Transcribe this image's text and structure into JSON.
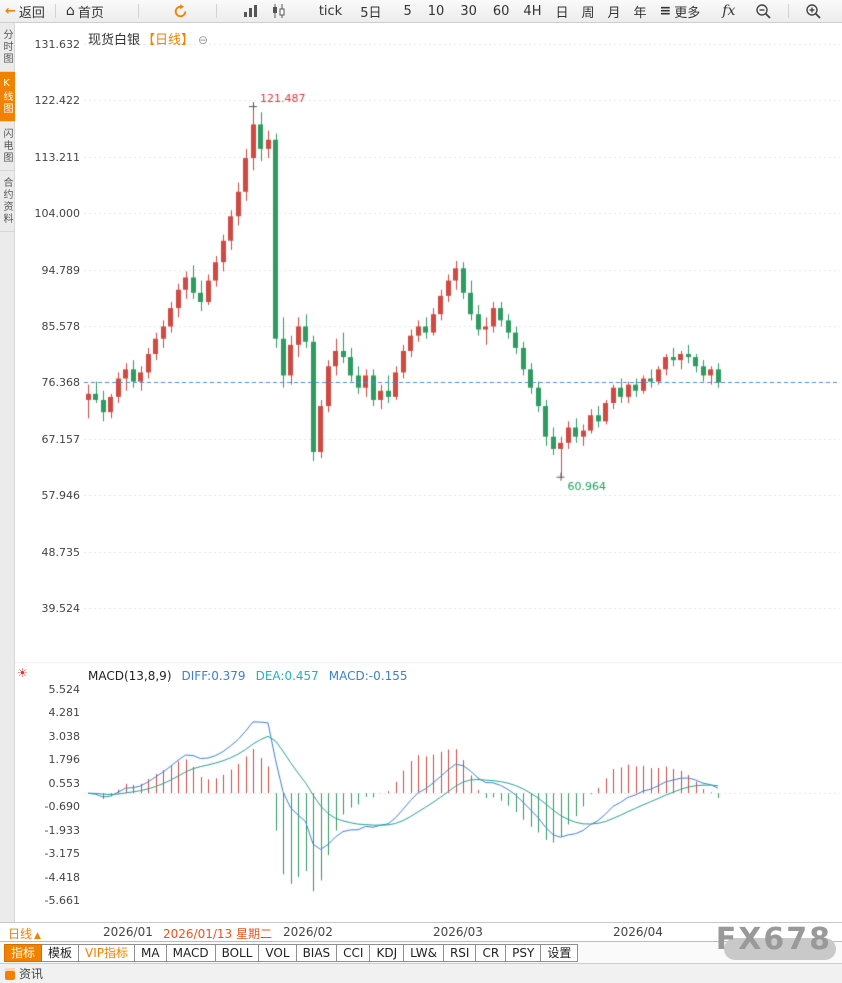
{
  "colors": {
    "accent": "#f08200",
    "candle_up": "#cf4a42",
    "candle_down": "#2e9b60",
    "price_line": "#4f8fd0",
    "macd_diff_line": "#3e7fd0",
    "macd_dea_line": "#2a9d8f",
    "hist_up": "#cf4a42",
    "hist_down": "#2e9b60",
    "date_highlight": "#e8541d",
    "annotation_high": "#e0393e",
    "annotation_low": "#1fa05a"
  },
  "toolbar": {
    "back": "返回",
    "home": "首页",
    "tick": "tick",
    "five_day": "5日",
    "intervals": [
      "5",
      "10",
      "30",
      "60",
      "4H",
      "日",
      "周",
      "月",
      "年"
    ],
    "more": "更多",
    "fx": "fx"
  },
  "sidebar": {
    "items": [
      {
        "label": "分时图",
        "active": false
      },
      {
        "label": "K线图",
        "active": true
      },
      {
        "label": "闪电图",
        "active": false
      },
      {
        "label": "合约资料",
        "active": false
      }
    ]
  },
  "chart_header": {
    "symbol": "现货白银",
    "period_tag": "【日线】"
  },
  "macd_header": {
    "title": "MACD(13,8,9)",
    "diff": "DIFF:0.379",
    "dea": "DEA:0.457",
    "macd": "MACD:-0.155"
  },
  "bottom": {
    "period_label": "日线",
    "indicator_tabs": [
      "指标",
      "模板",
      "VIP指标",
      "MA",
      "MACD",
      "BOLL",
      "VOL",
      "BIAS",
      "CCI",
      "KDJ",
      "LW&",
      "RSI",
      "CR",
      "PSY",
      "设置"
    ],
    "watermark": "FX678",
    "news_tab": "资讯"
  },
  "chart_data": {
    "type": "candlestick",
    "symbol": "现货白银",
    "interval": "日线",
    "y_axis": [
      131.632,
      122.422,
      113.211,
      104.0,
      94.789,
      85.578,
      76.368,
      67.157,
      57.946,
      48.735,
      39.524
    ],
    "price_line": 76.368,
    "annotations": {
      "high": 121.487,
      "high_text": "121.487",
      "low": 60.964,
      "low_text": "60.964"
    },
    "x_labels": [
      {
        "text": "2026/01",
        "index": 2,
        "highlight": false
      },
      {
        "text": "2026/01/13 星期二",
        "index": 10,
        "highlight": true
      },
      {
        "text": "2026/02",
        "index": 26,
        "highlight": false
      },
      {
        "text": "2026/03",
        "index": 46,
        "highlight": false
      },
      {
        "text": "2026/04",
        "index": 70,
        "highlight": false
      }
    ],
    "candles": [
      [
        73.5,
        76.0,
        70.5,
        74.5
      ],
      [
        74.5,
        76.5,
        73.0,
        73.5
      ],
      [
        73.5,
        75.0,
        70.0,
        71.5
      ],
      [
        71.5,
        74.5,
        70.5,
        74.0
      ],
      [
        74.0,
        78.0,
        73.0,
        77.0
      ],
      [
        77.0,
        79.5,
        75.0,
        78.5
      ],
      [
        78.5,
        80.0,
        75.5,
        76.5
      ],
      [
        76.5,
        79.0,
        75.0,
        78.0
      ],
      [
        78.0,
        82.0,
        77.0,
        81.0
      ],
      [
        81.0,
        84.5,
        80.0,
        83.5
      ],
      [
        83.5,
        86.5,
        82.0,
        85.5
      ],
      [
        85.5,
        89.5,
        84.5,
        88.5
      ],
      [
        88.5,
        92.5,
        87.0,
        91.5
      ],
      [
        91.5,
        94.5,
        90.0,
        93.5
      ],
      [
        93.5,
        95.5,
        90.0,
        91.0
      ],
      [
        91.0,
        93.0,
        88.0,
        89.5
      ],
      [
        89.5,
        94.0,
        89.0,
        93.0
      ],
      [
        93.0,
        97.0,
        92.0,
        96.0
      ],
      [
        96.0,
        100.5,
        94.5,
        99.5
      ],
      [
        99.5,
        104.5,
        98.0,
        103.5
      ],
      [
        103.5,
        109.0,
        102.0,
        107.5
      ],
      [
        107.5,
        114.5,
        106.0,
        113.0
      ],
      [
        113.0,
        121.487,
        111.0,
        118.5
      ],
      [
        118.5,
        120.5,
        112.5,
        114.5
      ],
      [
        114.5,
        117.5,
        113.0,
        116.0
      ],
      [
        116.0,
        117.0,
        82.0,
        83.5
      ],
      [
        83.5,
        87.0,
        75.5,
        77.5
      ],
      [
        77.5,
        84.0,
        76.0,
        82.5
      ],
      [
        82.5,
        87.0,
        80.5,
        85.5
      ],
      [
        85.5,
        87.5,
        82.0,
        83.0
      ],
      [
        83.0,
        84.0,
        63.5,
        65.0
      ],
      [
        65.0,
        73.5,
        64.0,
        72.5
      ],
      [
        72.5,
        80.0,
        71.5,
        79.0
      ],
      [
        79.0,
        83.5,
        77.5,
        81.5
      ],
      [
        81.5,
        84.5,
        79.5,
        80.5
      ],
      [
        80.5,
        82.0,
        76.5,
        77.5
      ],
      [
        77.5,
        79.0,
        74.5,
        75.5
      ],
      [
        75.5,
        78.5,
        74.0,
        77.5
      ],
      [
        77.5,
        78.5,
        72.5,
        73.5
      ],
      [
        73.5,
        76.0,
        72.0,
        75.0
      ],
      [
        75.0,
        77.5,
        73.0,
        74.0
      ],
      [
        74.0,
        79.0,
        73.5,
        78.0
      ],
      [
        78.0,
        82.5,
        77.0,
        81.5
      ],
      [
        81.5,
        85.0,
        80.5,
        84.0
      ],
      [
        84.0,
        86.5,
        83.0,
        85.5
      ],
      [
        85.5,
        87.0,
        83.5,
        84.5
      ],
      [
        84.5,
        88.5,
        84.0,
        87.5
      ],
      [
        87.5,
        91.5,
        86.5,
        90.5
      ],
      [
        90.5,
        94.0,
        89.5,
        93.0
      ],
      [
        93.0,
        96.2,
        91.5,
        95.0
      ],
      [
        95.0,
        96.0,
        90.0,
        91.0
      ],
      [
        91.0,
        93.0,
        86.5,
        87.5
      ],
      [
        87.5,
        89.0,
        84.0,
        85.0
      ],
      [
        85.0,
        87.0,
        82.5,
        85.5
      ],
      [
        85.5,
        89.5,
        84.5,
        88.5
      ],
      [
        88.5,
        89.5,
        85.5,
        86.5
      ],
      [
        86.5,
        87.5,
        83.5,
        84.5
      ],
      [
        84.5,
        85.5,
        81.0,
        82.0
      ],
      [
        82.0,
        83.0,
        77.5,
        78.5
      ],
      [
        78.5,
        79.5,
        74.5,
        75.5
      ],
      [
        75.5,
        76.5,
        71.5,
        72.5
      ],
      [
        72.5,
        73.5,
        66.0,
        67.5
      ],
      [
        67.5,
        69.0,
        64.5,
        65.5
      ],
      [
        65.5,
        67.5,
        60.964,
        66.5
      ],
      [
        66.5,
        70.0,
        65.5,
        69.0
      ],
      [
        69.0,
        70.5,
        66.5,
        67.5
      ],
      [
        67.5,
        69.5,
        66.0,
        68.5
      ],
      [
        68.5,
        72.0,
        68.0,
        71.0
      ],
      [
        71.0,
        72.5,
        69.0,
        70.0
      ],
      [
        70.0,
        73.5,
        69.5,
        73.0
      ],
      [
        73.0,
        76.0,
        72.0,
        75.5
      ],
      [
        75.5,
        77.0,
        73.0,
        74.0
      ],
      [
        74.0,
        76.5,
        73.0,
        76.0
      ],
      [
        76.0,
        77.0,
        74.0,
        75.0
      ],
      [
        75.0,
        77.5,
        74.5,
        77.0
      ],
      [
        77.0,
        78.5,
        75.5,
        76.5
      ],
      [
        76.5,
        79.0,
        76.0,
        78.5
      ],
      [
        78.5,
        81.0,
        77.5,
        80.5
      ],
      [
        80.5,
        82.0,
        79.0,
        80.0
      ],
      [
        80.0,
        81.5,
        78.5,
        81.0
      ],
      [
        81.0,
        82.5,
        79.5,
        80.5
      ],
      [
        80.5,
        81.0,
        78.0,
        79.0
      ],
      [
        79.0,
        80.0,
        76.5,
        77.5
      ],
      [
        77.5,
        79.0,
        76.0,
        78.5
      ],
      [
        78.5,
        79.5,
        75.5,
        76.368
      ]
    ],
    "macd": {
      "params": [
        13,
        8,
        9
      ],
      "diff": 0.379,
      "dea": 0.457,
      "macd": -0.155,
      "y_axis": [
        5.524,
        4.281,
        3.038,
        1.796,
        0.553,
        -0.69,
        -1.933,
        -3.175,
        -4.418,
        -5.661
      ]
    }
  }
}
